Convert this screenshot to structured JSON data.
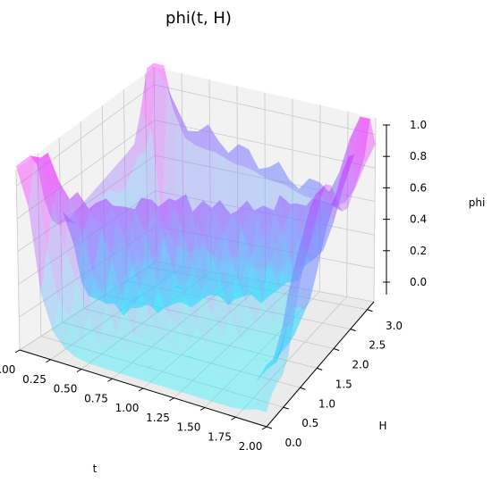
{
  "chart_data": {
    "type": "surface3d",
    "title": "phi(t, H)",
    "xlabel": "t",
    "ylabel": "H",
    "zlabel": "phi",
    "x_ticks": [
      "0.00",
      "0.25",
      "0.50",
      "0.75",
      "1.00",
      "1.25",
      "1.50",
      "1.75",
      "2.00"
    ],
    "y_ticks": [
      "0.0",
      "0.5",
      "1.0",
      "1.5",
      "2.0",
      "2.5",
      "3.0"
    ],
    "z_ticks": [
      "0.0",
      "0.2",
      "0.4",
      "0.6",
      "0.8",
      "1.0"
    ],
    "xlim": [
      0,
      2
    ],
    "ylim": [
      0,
      3.2
    ],
    "zlim": [
      0,
      1.1
    ],
    "colormap": "cool",
    "grid": true,
    "colors": {
      "pane_back": "#f2f2f2",
      "pane_floor": "#ebebeb",
      "grid": "#c8c8c8",
      "cmap_low": "#00ffff",
      "cmap_high": "#ff00ff"
    }
  }
}
